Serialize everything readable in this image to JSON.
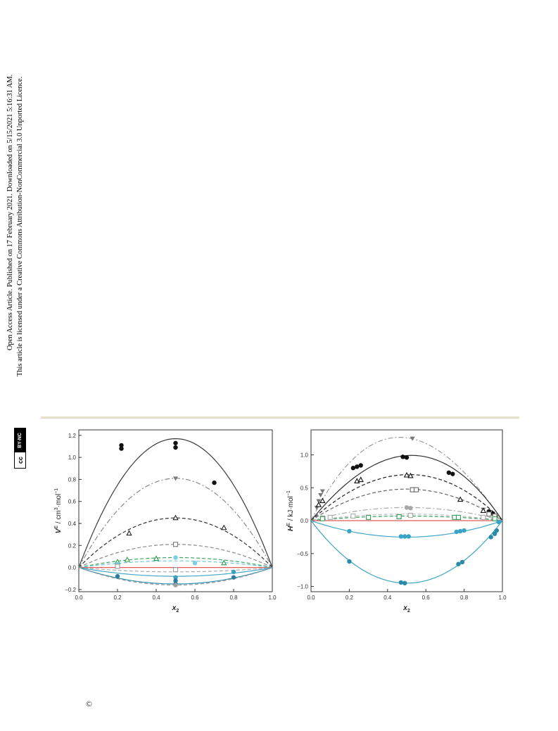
{
  "sidebar": {
    "line1": "Open Access Article. Published on 17 February 2021. Downloaded on 5/15/2021 5:16:31 AM.",
    "line2": "This article is licensed under a Creative Commons Attribution-NonCommercial 3.0 Unported Licence.",
    "badge_cc": "cc",
    "badge_text": "BY-NC"
  },
  "footer": {
    "copyright": "©"
  },
  "chart_data": [
    {
      "type": "line",
      "title": "",
      "xlabel": "x2",
      "ylabel": "VE / cm3·mol−1",
      "xlim": [
        0.0,
        1.0
      ],
      "ylim": [
        -0.22,
        1.25
      ],
      "xticks": [
        "0.0",
        "0.2",
        "0.4",
        "0.6",
        "0.8",
        "1.0"
      ],
      "yticks": [
        "−0.2",
        "0.0",
        "0.2",
        "0.4",
        "0.6",
        "0.8",
        "1.0",
        "1.2"
      ],
      "grid": false,
      "series": [
        {
          "curve": "a",
          "style": "solid",
          "color": "#3a3a3a",
          "amp": 1.17,
          "skew": 0.0,
          "marker": "circle-filled",
          "mcolor": "#111111",
          "points": [
            [
              0.22,
              1.11
            ],
            [
              0.22,
              1.08
            ],
            [
              0.5,
              1.13
            ],
            [
              0.5,
              1.09
            ],
            [
              0.7,
              0.77
            ]
          ]
        },
        {
          "curve": "b",
          "style": "dashdot",
          "color": "#8a8a8a",
          "amp": 0.81,
          "skew": 0.0,
          "marker": "triangle-down-filled",
          "mcolor": "#7a7a7a",
          "points": [
            [
              0.5,
              0.81
            ]
          ]
        },
        {
          "curve": "c",
          "style": "dashed",
          "color": "#333333",
          "amp": 0.45,
          "skew": 0.0,
          "marker": "triangle-open",
          "mcolor": "#222222",
          "points": [
            [
              0.26,
              0.31
            ],
            [
              0.5,
              0.45
            ],
            [
              0.75,
              0.36
            ]
          ]
        },
        {
          "curve": "d",
          "style": "dashed",
          "color": "#8a8a8a",
          "amp": 0.21,
          "skew": 0.0,
          "marker": "square-open",
          "mcolor": "#777777",
          "points": [
            [
              0.5,
              0.21
            ]
          ]
        },
        {
          "curve": "e",
          "style": "dashed",
          "color": "#3aa860",
          "amp": 0.09,
          "skew": 0.0,
          "marker": "triangle-open",
          "mcolor": "#30a050",
          "points": [
            [
              0.2,
              0.05
            ],
            [
              0.25,
              0.07
            ],
            [
              0.4,
              0.08
            ],
            [
              0.75,
              0.04
            ]
          ]
        },
        {
          "curve": "f",
          "style": "dashed",
          "color": "#6cc6d8",
          "amp": 0.06,
          "skew": 0.0,
          "marker": "circle-filled",
          "mcolor": "#7ccfe0",
          "points": [
            [
              0.2,
              0.03
            ],
            [
              0.5,
              0.09
            ],
            [
              0.6,
              0.04
            ]
          ]
        },
        {
          "curve": "g",
          "style": "solid",
          "color": "#e05a5a",
          "amp": 0.0,
          "skew": 0.0,
          "marker": "none",
          "mcolor": "#e05a5a",
          "points": []
        },
        {
          "curve": "h",
          "style": "dashed",
          "color": "#aaaaaa",
          "amp": -0.04,
          "skew": 0.0,
          "marker": "square-open",
          "mcolor": "#999999",
          "points": [
            [
              0.2,
              0.01
            ],
            [
              0.5,
              -0.02
            ]
          ]
        },
        {
          "curve": "i",
          "style": "solid",
          "color": "#45aac8",
          "amp": -0.08,
          "skew": 0.0,
          "marker": "circle-filled",
          "mcolor": "#3aa0c0",
          "points": [
            [
              0.5,
              -0.09
            ],
            [
              0.8,
              -0.04
            ]
          ]
        },
        {
          "curve": "j",
          "style": "solid",
          "color": "#2f8fb0",
          "amp": -0.15,
          "skew": 0.0,
          "marker": "circle-filled",
          "mcolor": "#2a7fa0",
          "points": [
            [
              0.2,
              -0.08
            ],
            [
              0.5,
              -0.12
            ],
            [
              0.5,
              -0.15
            ],
            [
              0.8,
              -0.09
            ]
          ]
        },
        {
          "curve": "k",
          "style": "dashed",
          "color": "#999999",
          "amp": -0.16,
          "skew": 0.0,
          "marker": "circle-filled",
          "mcolor": "#a0a0a0",
          "points": [
            [
              0.5,
              -0.16
            ]
          ]
        }
      ]
    },
    {
      "type": "line",
      "title": "",
      "xlabel": "x2",
      "ylabel": "HE / kJ·mol−1",
      "xlim": [
        0.0,
        1.0
      ],
      "ylim": [
        -1.08,
        1.38
      ],
      "xticks": [
        "0.0",
        "0.2",
        "0.4",
        "0.6",
        "0.8",
        "1.0"
      ],
      "yticks": [
        "−1.0",
        "−0.5",
        "0.0",
        "0.5",
        "1.0"
      ],
      "grid": false,
      "series": [
        {
          "curve": "a",
          "style": "dashdot",
          "color": "#999999",
          "amp": 1.26,
          "skew": 0.15,
          "marker": "triangle-down-filled",
          "mcolor": "#777777",
          "points": [
            [
              0.03,
              0.2
            ],
            [
              0.04,
              0.3
            ],
            [
              0.05,
              0.39
            ],
            [
              0.06,
              0.45
            ],
            [
              0.53,
              1.25
            ],
            [
              0.9,
              0.17
            ],
            [
              0.95,
              0.1
            ]
          ]
        },
        {
          "curve": "b",
          "style": "solid",
          "color": "#2e2e2e",
          "amp": 0.99,
          "skew": -0.1,
          "marker": "circle-filled",
          "mcolor": "#111111",
          "points": [
            [
              0.22,
              0.8
            ],
            [
              0.24,
              0.82
            ],
            [
              0.26,
              0.84
            ],
            [
              0.48,
              0.97
            ],
            [
              0.5,
              0.96
            ],
            [
              0.72,
              0.73
            ],
            [
              0.74,
              0.71
            ],
            [
              0.93,
              0.14
            ],
            [
              0.95,
              0.11
            ]
          ]
        },
        {
          "curve": "c",
          "style": "dashed",
          "color": "#222222",
          "amp": 0.7,
          "skew": -0.05,
          "marker": "triangle-open",
          "mcolor": "#111111",
          "points": [
            [
              0.04,
              0.24
            ],
            [
              0.06,
              0.3
            ],
            [
              0.24,
              0.6
            ],
            [
              0.26,
              0.62
            ],
            [
              0.5,
              0.69
            ],
            [
              0.52,
              0.68
            ],
            [
              0.78,
              0.32
            ],
            [
              0.9,
              0.15
            ]
          ]
        },
        {
          "curve": "d",
          "style": "dashed",
          "color": "#666666",
          "amp": 0.48,
          "skew": 0.0,
          "marker": "square-open",
          "mcolor": "#666666",
          "points": [
            [
              0.53,
              0.47
            ],
            [
              0.55,
              0.47
            ],
            [
              0.93,
              0.1
            ],
            [
              0.96,
              0.07
            ]
          ]
        },
        {
          "curve": "e",
          "style": "dashdot",
          "color": "#aaaaaa",
          "amp": 0.2,
          "skew": 0.0,
          "marker": "circle-filled",
          "mcolor": "#a8a8a8",
          "points": [
            [
              0.5,
              0.2
            ],
            [
              0.52,
              0.19
            ]
          ]
        },
        {
          "curve": "f",
          "style": "dashed",
          "color": "#bbbbbb",
          "amp": 0.1,
          "skew": 0.0,
          "marker": "square-open",
          "mcolor": "#aaaaaa",
          "points": [
            [
              0.06,
              0.04
            ],
            [
              0.1,
              0.05
            ],
            [
              0.22,
              0.07
            ],
            [
              0.52,
              0.08
            ],
            [
              0.9,
              0.05
            ]
          ]
        },
        {
          "curve": "g",
          "style": "dashed",
          "color": "#2e9e58",
          "amp": 0.07,
          "skew": 0.0,
          "marker": "square-open",
          "mcolor": "#2e9e58",
          "points": [
            [
              0.06,
              0.03
            ],
            [
              0.3,
              0.05
            ],
            [
              0.46,
              0.06
            ],
            [
              0.75,
              0.05
            ],
            [
              0.77,
              0.05
            ],
            [
              0.96,
              0.03
            ]
          ]
        },
        {
          "curve": "h",
          "style": "solid",
          "color": "#e05a5a",
          "amp": 0.0,
          "skew": 0.0,
          "marker": "none",
          "mcolor": "#e05a5a",
          "points": []
        },
        {
          "curve": "i",
          "style": "solid",
          "color": "#42a6c6",
          "amp": -0.25,
          "skew": 0.0,
          "marker": "circle-filled",
          "mcolor": "#38a4c8",
          "points": [
            [
              0.2,
              -0.16
            ],
            [
              0.47,
              -0.24
            ],
            [
              0.49,
              -0.24
            ],
            [
              0.51,
              -0.24
            ],
            [
              0.76,
              -0.17
            ],
            [
              0.78,
              -0.16
            ],
            [
              0.8,
              -0.15
            ],
            [
              0.98,
              -0.02
            ]
          ]
        },
        {
          "curve": "j",
          "style": "solid",
          "color": "#3aa4c4",
          "amp": -0.95,
          "skew": 0.0,
          "marker": "circle-filled",
          "mcolor": "#2b8aa8",
          "points": [
            [
              0.2,
              -0.62
            ],
            [
              0.47,
              -0.94
            ],
            [
              0.49,
              -0.95
            ],
            [
              0.77,
              -0.66
            ],
            [
              0.79,
              -0.63
            ],
            [
              0.94,
              -0.25
            ],
            [
              0.96,
              -0.2
            ],
            [
              0.97,
              -0.15
            ]
          ]
        }
      ]
    }
  ]
}
